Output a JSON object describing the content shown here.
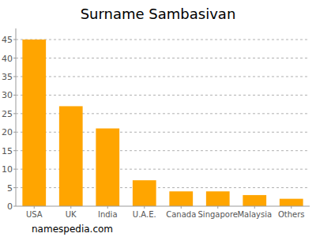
{
  "chart_data": {
    "type": "bar",
    "title": "Surname Sambasivan",
    "categories": [
      "USA",
      "UK",
      "India",
      "U.A.E.",
      "Canada",
      "Singapore",
      "Malaysia",
      "Others"
    ],
    "values": [
      45,
      27,
      21,
      7,
      4,
      4,
      3,
      2
    ],
    "color": "#ffa500",
    "ylim": [
      0,
      48
    ],
    "yticks": [
      0,
      5,
      10,
      15,
      20,
      25,
      30,
      35,
      40,
      45
    ],
    "grid": true,
    "annotations": [
      "namespedia.com"
    ]
  }
}
